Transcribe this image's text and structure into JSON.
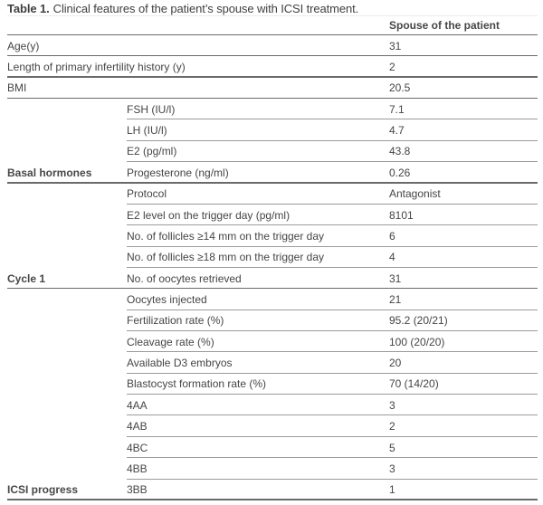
{
  "title": {
    "prefix": "Table 1.",
    "text": "Clinical features of the patient’s spouse with ICSI treatment."
  },
  "table": {
    "value_header": "Spouse of the patient",
    "rows": [
      {
        "group": "",
        "param": "Age(y)",
        "value": "31"
      },
      {
        "group": "",
        "param": "Length of primary infertility history (y)",
        "value": "2"
      },
      {
        "group": "",
        "param": "BMI",
        "value": "20.5"
      },
      {
        "group": "",
        "param": "FSH (IU/l)",
        "value": "7.1"
      },
      {
        "group": "",
        "param": "LH (IU/l)",
        "value": "4.7"
      },
      {
        "group": "",
        "param": "E2 (pg/ml)",
        "value": "43.8"
      },
      {
        "group": "Basal hormones",
        "param": "Progesterone (ng/ml)",
        "value": "0.26"
      },
      {
        "group": "",
        "param": "Protocol",
        "value": "Antagonist"
      },
      {
        "group": "",
        "param": "E2 level on the trigger day (pg/ml)",
        "value": "8101"
      },
      {
        "group": "",
        "param": "No. of follicles ≥14 mm on the trigger day",
        "value": "6"
      },
      {
        "group": "",
        "param": "No. of follicles ≥18 mm on the trigger day",
        "value": "4"
      },
      {
        "group": "Cycle 1",
        "param": "No. of oocytes retrieved",
        "value": "31"
      },
      {
        "group": "",
        "param": "Oocytes injected",
        "value": "21"
      },
      {
        "group": "",
        "param": "Fertilization rate (%)",
        "value": "95.2 (20/21)"
      },
      {
        "group": "",
        "param": "Cleavage rate (%)",
        "value": "100 (20/20)"
      },
      {
        "group": "",
        "param": "Available D3 embryos",
        "value": "20"
      },
      {
        "group": "",
        "param": "Blastocyst formation rate (%)",
        "value": "70 (14/20)"
      },
      {
        "group": "",
        "param": "4AA",
        "value": "3"
      },
      {
        "group": "",
        "param": "4AB",
        "value": "2"
      },
      {
        "group": "",
        "param": "4BC",
        "value": "5"
      },
      {
        "group": "",
        "param": "4BB",
        "value": "3"
      },
      {
        "group": "ICSI progress",
        "param": "3BB",
        "value": "1"
      }
    ]
  },
  "colors": {
    "text": "#454545",
    "rule_strong": "#6a6a6a",
    "rule_light": "#9b9b9b"
  }
}
